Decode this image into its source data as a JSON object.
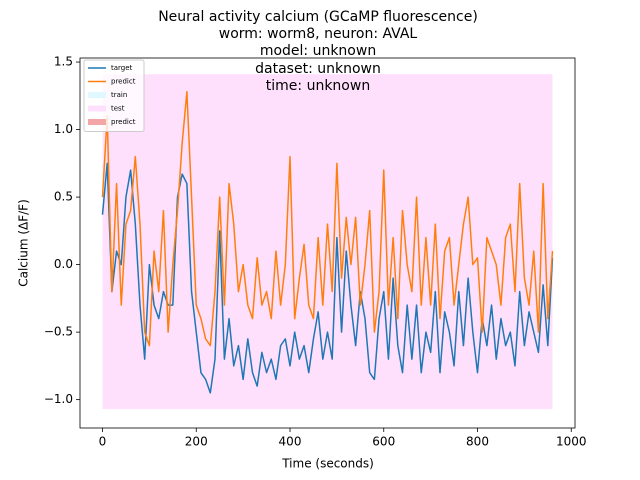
{
  "chart_data": {
    "type": "line",
    "title": [
      "Neural activity calcium (GCaMP fluorescence)",
      "worm: worm8, neuron: AVAL",
      "model: unknown",
      "dataset: unknown",
      "time: unknown"
    ],
    "xlabel": "Time (seconds)",
    "ylabel": "Calcium (ΔF/F)",
    "xlim": [
      -48,
      1008
    ],
    "ylim": [
      -1.21,
      1.53
    ],
    "xticks": [
      0,
      200,
      400,
      600,
      800,
      1000
    ],
    "yticks": [
      {
        "value": -1.0,
        "label": "−1.0"
      },
      {
        "value": -0.5,
        "label": "−0.5"
      },
      {
        "value": 0.0,
        "label": "0.0"
      },
      0.5,
      {
        "value": 1.0,
        "label": "1.0"
      },
      {
        "value": 1.5,
        "label": "1.5"
      }
    ],
    "grid": false,
    "legend": "upper left",
    "x": [
      0,
      10,
      20,
      30,
      40,
      50,
      60,
      70,
      80,
      90,
      100,
      110,
      120,
      130,
      140,
      150,
      160,
      170,
      180,
      190,
      200,
      210,
      220,
      230,
      240,
      250,
      260,
      270,
      280,
      290,
      300,
      310,
      320,
      330,
      340,
      350,
      360,
      370,
      380,
      390,
      400,
      410,
      420,
      430,
      440,
      450,
      460,
      470,
      480,
      490,
      500,
      510,
      520,
      530,
      540,
      550,
      560,
      570,
      580,
      590,
      600,
      610,
      620,
      630,
      640,
      650,
      660,
      670,
      680,
      690,
      700,
      710,
      720,
      730,
      740,
      750,
      760,
      770,
      780,
      790,
      800,
      810,
      820,
      830,
      840,
      850,
      860,
      870,
      880,
      890,
      900,
      910,
      920,
      930,
      940,
      950,
      960
    ],
    "series": [
      {
        "name": "target",
        "color": "#1f77b4",
        "values": [
          0.37,
          0.75,
          -0.2,
          0.1,
          0.0,
          0.5,
          0.7,
          0.3,
          -0.3,
          -0.7,
          0.0,
          -0.3,
          -0.4,
          -0.2,
          -0.3,
          -0.3,
          0.5,
          0.67,
          0.6,
          -0.2,
          -0.5,
          -0.8,
          -0.85,
          -0.95,
          -0.7,
          0.25,
          -0.7,
          -0.4,
          -0.75,
          -0.6,
          -0.85,
          -0.55,
          -0.8,
          -0.9,
          -0.65,
          -0.8,
          -0.7,
          -0.85,
          -0.6,
          -0.55,
          -0.75,
          -0.5,
          -0.7,
          -0.6,
          -0.8,
          -0.55,
          -0.35,
          -0.7,
          -0.5,
          -0.7,
          0.2,
          -0.5,
          0.1,
          -0.3,
          -0.6,
          -0.2,
          -0.4,
          -0.8,
          -0.85,
          -0.4,
          -0.2,
          -0.7,
          -0.1,
          -0.6,
          -0.8,
          -0.3,
          -0.7,
          -0.3,
          -0.8,
          -0.5,
          -0.65,
          -0.2,
          -0.8,
          -0.35,
          -0.5,
          -0.75,
          -0.2,
          -0.6,
          -0.1,
          -0.5,
          -0.8,
          -0.4,
          -0.6,
          -0.3,
          -0.7,
          -0.4,
          -0.6,
          -0.5,
          -0.75,
          -0.2,
          -0.6,
          -0.35,
          -0.5,
          -0.65,
          -0.15,
          -0.6,
          0.05
        ]
      },
      {
        "name": "predict",
        "color": "#ff7f0e",
        "values": [
          0.5,
          1.1,
          -0.2,
          0.6,
          -0.3,
          0.3,
          0.4,
          0.8,
          0.3,
          -0.5,
          -0.6,
          0.1,
          -0.2,
          0.4,
          -0.5,
          0.0,
          0.4,
          0.9,
          1.28,
          0.5,
          -0.3,
          -0.4,
          -0.55,
          -0.6,
          -0.2,
          0.5,
          -0.3,
          0.6,
          0.3,
          -0.2,
          0.0,
          -0.3,
          -0.4,
          0.05,
          -0.3,
          -0.2,
          -0.4,
          0.1,
          -0.3,
          0.0,
          0.8,
          -0.4,
          -0.1,
          0.15,
          -0.3,
          -0.4,
          0.2,
          -0.3,
          0.3,
          -0.2,
          0.75,
          -0.1,
          0.35,
          0.0,
          0.35,
          -0.3,
          0.0,
          0.4,
          -0.5,
          -0.2,
          0.7,
          -0.3,
          0.2,
          -0.4,
          0.4,
          0.0,
          -0.2,
          0.5,
          -0.3,
          0.2,
          -0.3,
          0.3,
          -0.4,
          0.1,
          0.2,
          -0.3,
          0.0,
          0.3,
          0.5,
          0.0,
          0.05,
          -0.5,
          0.2,
          0.1,
          0.0,
          -0.3,
          0.2,
          0.3,
          -0.2,
          0.6,
          -0.1,
          -0.3,
          0.1,
          -0.5,
          0.6,
          -0.4,
          0.1
        ]
      }
    ],
    "spans": [
      {
        "name": "train",
        "color": "#e0f8ff"
      },
      {
        "name": "test",
        "color": "#ffe0fc",
        "x": [
          0,
          960
        ],
        "y": [
          -1.07,
          1.41
        ]
      },
      {
        "name": "predict",
        "color": "#f4a6a6"
      }
    ]
  }
}
